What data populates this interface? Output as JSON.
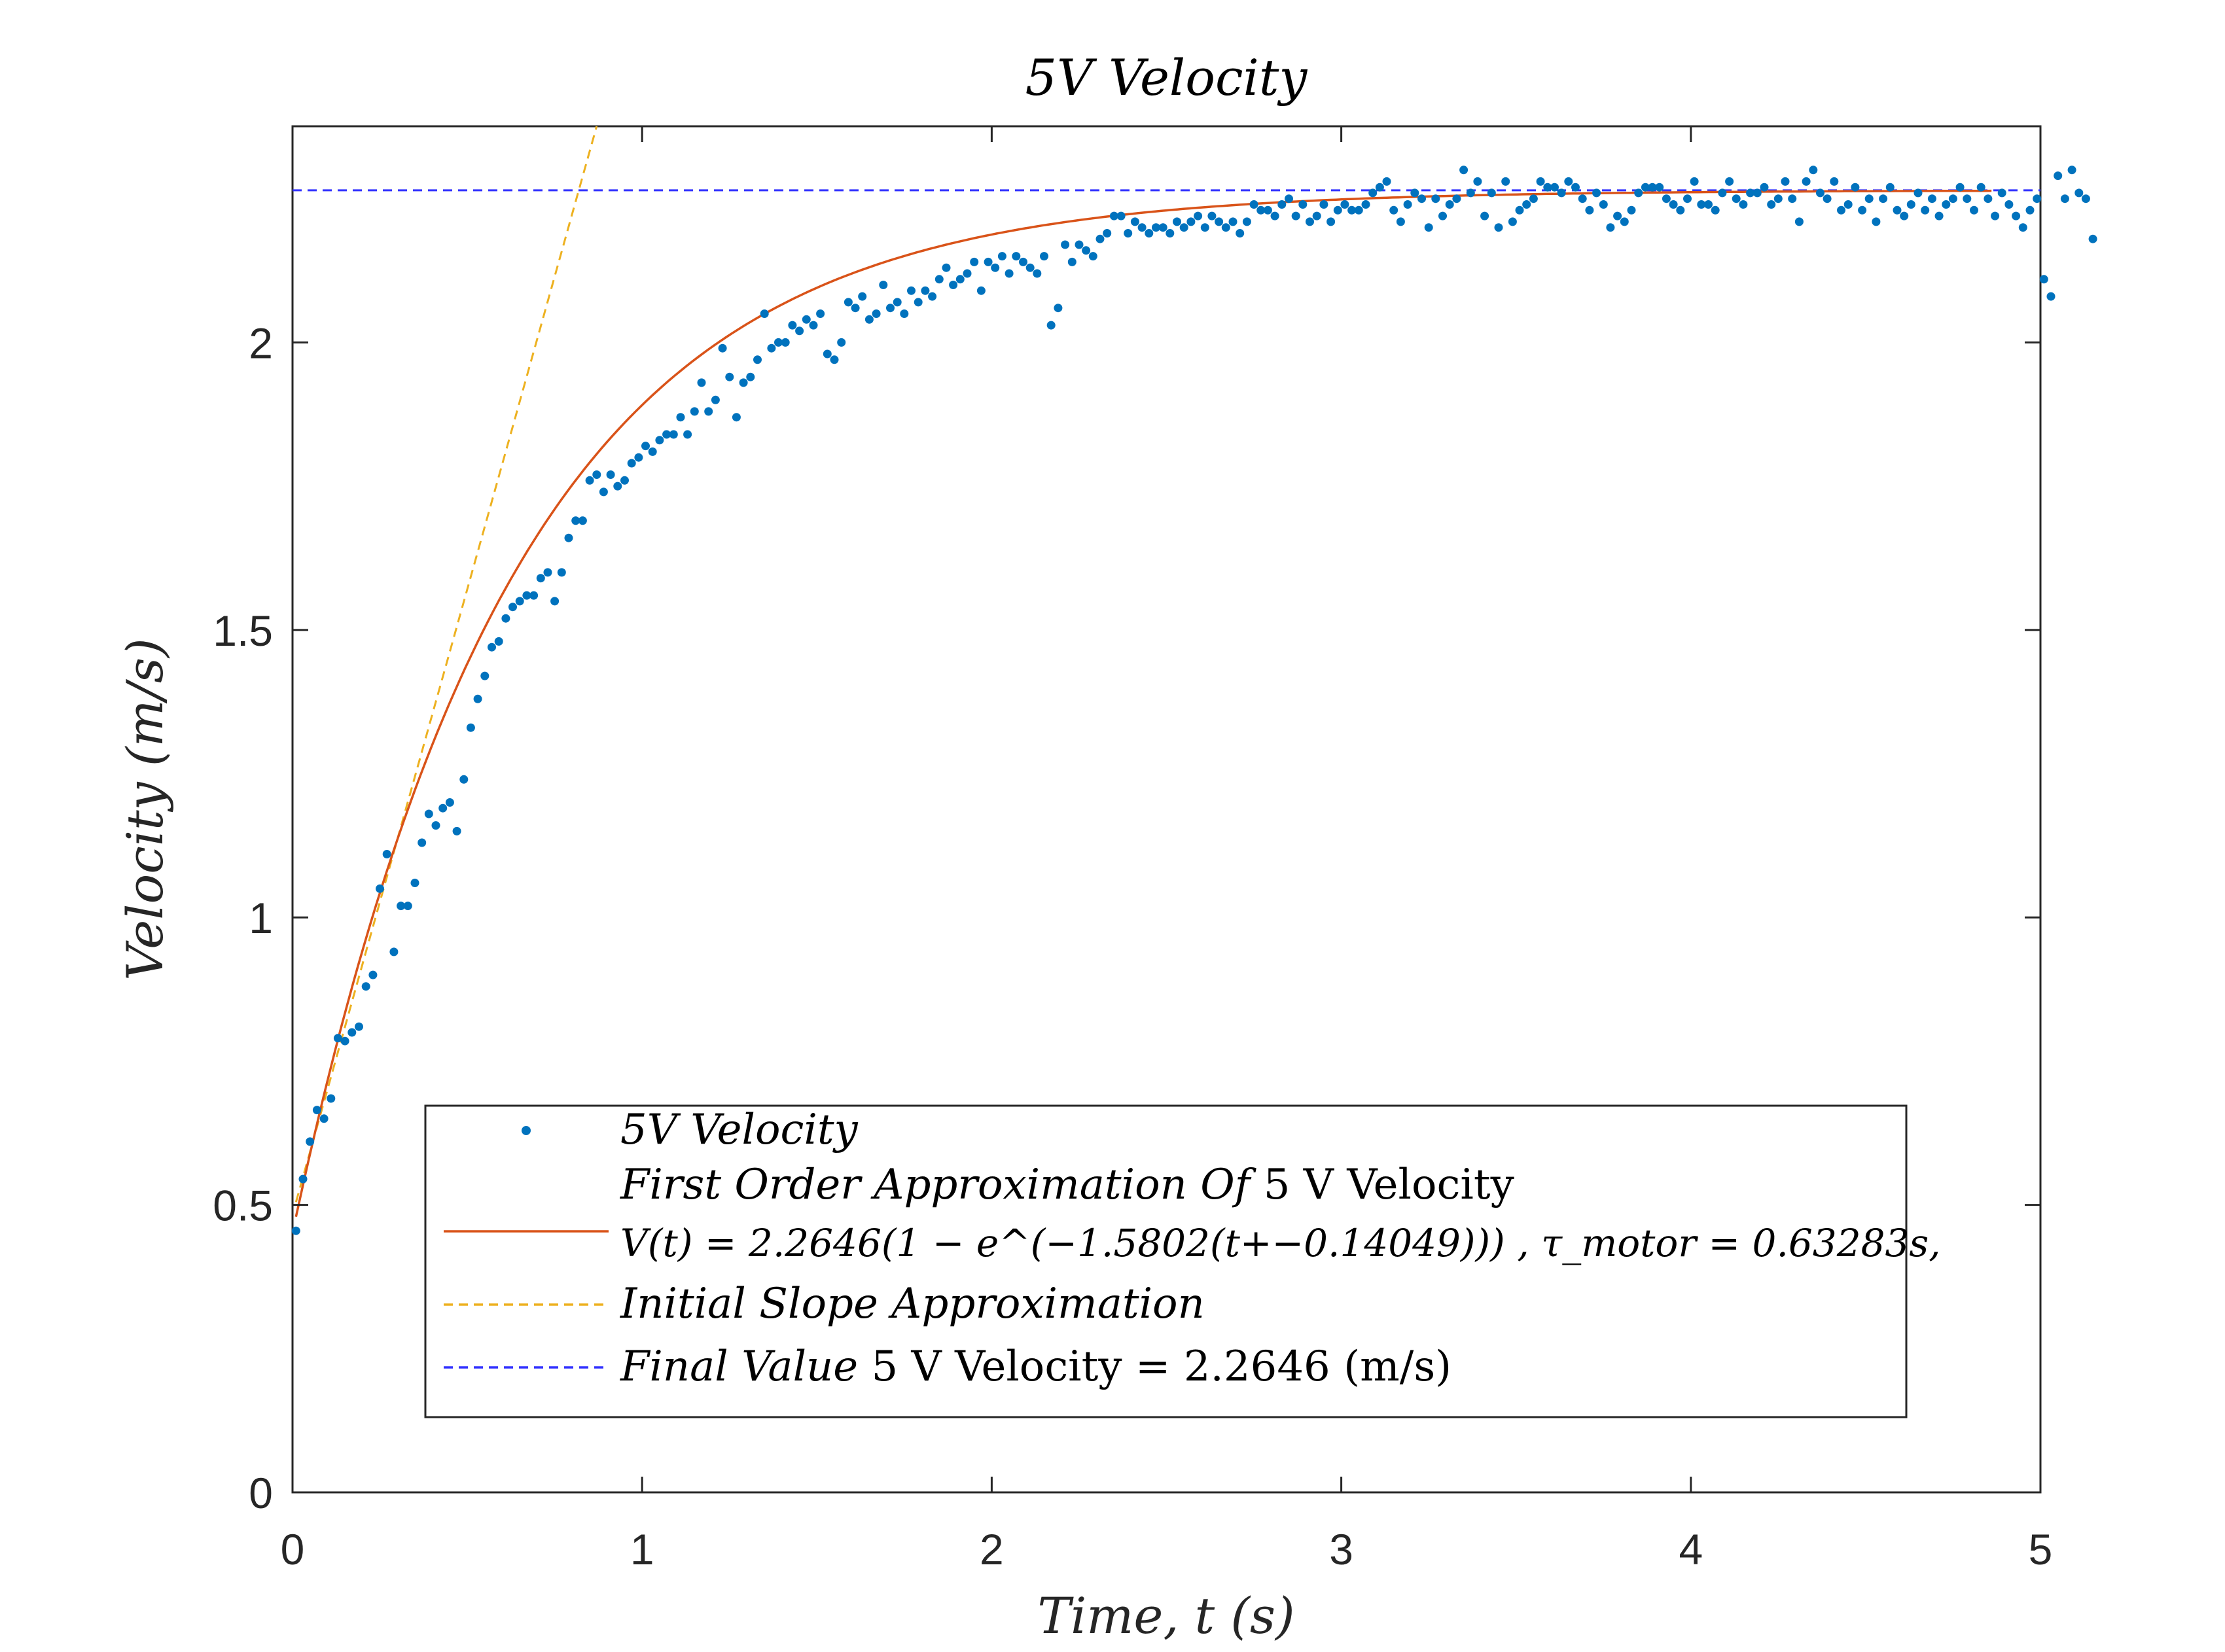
{
  "chart_data": {
    "type": "scatter",
    "title": "5V Velocity",
    "xlabel": "Time, t (s)",
    "ylabel": "Velocity (m/s)",
    "xlim": [
      0,
      5
    ],
    "ylim": [
      0,
      2.376
    ],
    "xticks": [
      0,
      1,
      2,
      3,
      4,
      5
    ],
    "yticks": [
      0,
      0.5,
      1,
      1.5,
      2
    ],
    "xtick_labels": [
      "0",
      "1",
      "2",
      "3",
      "4",
      "5"
    ],
    "ytick_labels": [
      "0",
      "0.5",
      "1",
      "1.5",
      "2"
    ],
    "grid": false,
    "legend_position": "bottom-center",
    "colors": {
      "data": "#0072BD",
      "fit": "#D95319",
      "slope": "#EDB120",
      "final": "#3333FF",
      "axes": "#262626"
    },
    "series": [
      {
        "name": "5V Velocity",
        "kind": "scatter",
        "sampling": {
          "t_start": 0.01,
          "t_step": 0.02,
          "count": 243
        },
        "y": [
          0.455,
          0.545,
          0.61,
          0.665,
          0.65,
          0.685,
          0.79,
          0.785,
          0.8,
          0.81,
          0.88,
          0.9,
          1.05,
          1.11,
          0.94,
          1.02,
          1.02,
          1.06,
          1.13,
          1.18,
          1.16,
          1.19,
          1.2,
          1.15,
          1.24,
          1.33,
          1.38,
          1.42,
          1.47,
          1.48,
          1.52,
          1.54,
          1.55,
          1.56,
          1.56,
          1.59,
          1.6,
          1.55,
          1.6,
          1.66,
          1.69,
          1.69,
          1.76,
          1.77,
          1.74,
          1.77,
          1.75,
          1.76,
          1.79,
          1.8,
          1.82,
          1.81,
          1.83,
          1.84,
          1.84,
          1.87,
          1.84,
          1.88,
          1.93,
          1.88,
          1.9,
          1.99,
          1.94,
          1.87,
          1.93,
          1.94,
          1.97,
          2.05,
          1.99,
          2.0,
          2.0,
          2.03,
          2.02,
          2.04,
          2.03,
          2.05,
          1.98,
          1.97,
          2.0,
          2.07,
          2.06,
          2.08,
          2.04,
          2.05,
          2.1,
          2.06,
          2.07,
          2.05,
          2.09,
          2.07,
          2.09,
          2.08,
          2.11,
          2.13,
          2.1,
          2.11,
          2.12,
          2.14,
          2.09,
          2.14,
          2.13,
          2.15,
          2.12,
          2.15,
          2.14,
          2.13,
          2.12,
          2.15,
          2.03,
          2.06,
          2.17,
          2.14,
          2.17,
          2.16,
          2.15,
          2.18,
          2.19,
          2.22,
          2.22,
          2.19,
          2.21,
          2.2,
          2.19,
          2.2,
          2.2,
          2.19,
          2.21,
          2.2,
          2.21,
          2.22,
          2.2,
          2.22,
          2.21,
          2.2,
          2.21,
          2.19,
          2.21,
          2.24,
          2.23,
          2.23,
          2.22,
          2.24,
          2.25,
          2.22,
          2.24,
          2.21,
          2.22,
          2.24,
          2.21,
          2.23,
          2.24,
          2.23,
          2.23,
          2.24,
          2.26,
          2.27,
          2.28,
          2.23,
          2.21,
          2.24,
          2.26,
          2.25,
          2.2,
          2.25,
          2.22,
          2.24,
          2.25,
          2.3,
          2.26,
          2.28,
          2.22,
          2.26,
          2.2,
          2.28,
          2.21,
          2.23,
          2.24,
          2.25,
          2.28,
          2.27,
          2.27,
          2.26,
          2.28,
          2.27,
          2.25,
          2.23,
          2.26,
          2.24,
          2.2,
          2.22,
          2.21,
          2.23,
          2.26,
          2.27,
          2.27,
          2.27,
          2.25,
          2.24,
          2.23,
          2.25,
          2.28,
          2.24,
          2.24,
          2.23,
          2.26,
          2.28,
          2.25,
          2.24,
          2.26,
          2.26,
          2.27,
          2.24,
          2.25,
          2.28,
          2.25,
          2.21,
          2.28,
          2.3,
          2.26,
          2.25,
          2.28,
          2.23,
          2.24,
          2.27,
          2.23,
          2.25,
          2.21,
          2.25,
          2.27,
          2.23,
          2.22,
          2.24,
          2.26,
          2.23,
          2.25,
          2.22,
          2.24,
          2.25,
          2.27,
          2.25,
          2.23,
          2.27,
          2.25,
          2.22,
          2.26,
          2.24,
          2.22,
          2.2,
          2.23,
          2.25,
          2.11,
          2.08,
          2.29,
          2.25,
          2.3,
          2.26,
          2.25,
          2.18
        ]
      },
      {
        "name": "First Order Approximation Of 5 V  Velocity",
        "kind": "line",
        "style": "solid",
        "model": {
          "K": 2.2646,
          "a": 1.5802,
          "t0": -0.14049,
          "t_start": 0.01,
          "t_end": 4.86
        }
      },
      {
        "name": "Initial Slope Approximation",
        "kind": "line",
        "style": "dashed",
        "points": [
          [
            0.01,
            0.505
          ],
          [
            0.87,
            2.376
          ]
        ]
      },
      {
        "name": "Final Value 5 V  Velocity",
        "kind": "line",
        "style": "dashed",
        "y": 2.2646
      }
    ],
    "legend": [
      {
        "marker": "dot",
        "series": 0,
        "lines": [
          {
            "prefix": "5V Velocity",
            "rest": "",
            "math": ""
          }
        ]
      },
      {
        "marker": "solid",
        "series": 1,
        "lines": [
          {
            "prefix": "First Order Approximation Of",
            "rest": " 5 V  Velocity",
            "math": ""
          },
          {
            "prefix": "",
            "rest": "",
            "math": "V(t) = 2.2646(1 − e^(−1.5802(t+−0.14049))) , τ_motor = 0.63283s,"
          }
        ]
      },
      {
        "marker": "dashed",
        "series": 2,
        "lines": [
          {
            "prefix": "Initial Slope Approximation",
            "rest": "",
            "math": ""
          }
        ]
      },
      {
        "marker": "dashed",
        "series": 3,
        "lines": [
          {
            "prefix": "Final Value",
            "rest": " 5 V  Velocity =  2.2646 (m/s)",
            "math": ""
          }
        ]
      }
    ]
  }
}
